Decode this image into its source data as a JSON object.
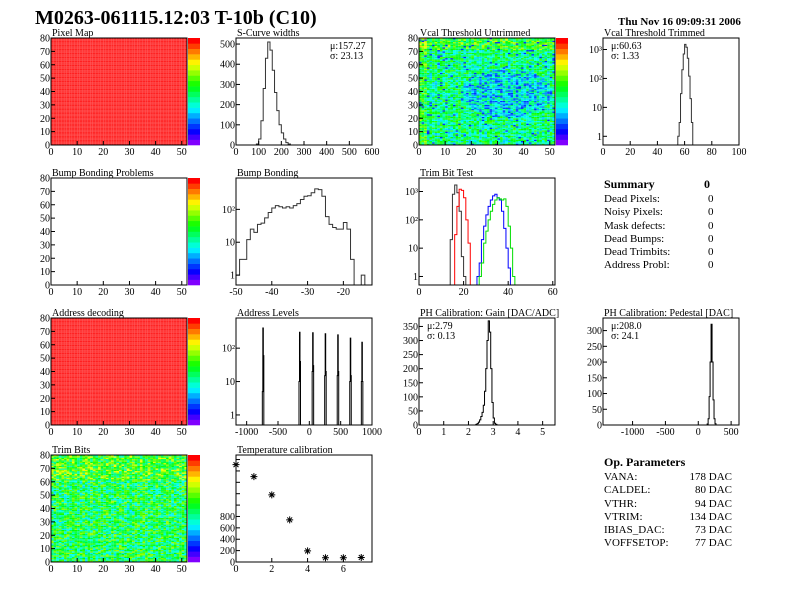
{
  "header": {
    "title": "M0263-061115.12:03 T-10b (C10)",
    "date": "Thu Nov 16 09:09:31 2006"
  },
  "colors": {
    "frame": "#000000",
    "hist_line": "#333333",
    "uniform_map": "#ff2020"
  },
  "summary": {
    "title": "Summary",
    "total": "0",
    "rows": [
      {
        "label": "Dead Pixels:",
        "value": "0"
      },
      {
        "label": "Noisy Pixels:",
        "value": "0"
      },
      {
        "label": "Mask defects:",
        "value": "0"
      },
      {
        "label": "Dead Bumps:",
        "value": "0"
      },
      {
        "label": "Dead Trimbits:",
        "value": "0"
      },
      {
        "label": "Address Probl:",
        "value": "0"
      }
    ]
  },
  "op_parameters": {
    "title": "Op. Parameters",
    "rows": [
      {
        "label": "VANA:",
        "value": "178 DAC"
      },
      {
        "label": "CALDEL:",
        "value": "80 DAC"
      },
      {
        "label": "VTHR:",
        "value": "94 DAC"
      },
      {
        "label": "VTRIM:",
        "value": "134 DAC"
      },
      {
        "label": "IBIAS_DAC:",
        "value": "73 DAC"
      },
      {
        "label": "VOFFSETOP:",
        "value": "77 DAC"
      }
    ]
  },
  "chart_data": [
    {
      "id": "pixel-map",
      "type": "heatmap",
      "title": "Pixel Map",
      "xlim": [
        0,
        52
      ],
      "ylim": [
        0,
        80
      ],
      "xticks": [
        0,
        10,
        20,
        30,
        40,
        50
      ],
      "yticks": [
        0,
        10,
        20,
        30,
        40,
        50,
        60,
        70,
        80
      ],
      "zlim": [
        0,
        10
      ],
      "fill": "uniform-max"
    },
    {
      "id": "s-curve-widths",
      "type": "bar",
      "title": "S-Curve widths",
      "xlim": [
        0,
        600
      ],
      "ylim": [
        0,
        530
      ],
      "bin_width": 10,
      "xticks": [
        0,
        100,
        200,
        300,
        400,
        500,
        600
      ],
      "yticks": [
        0,
        100,
        200,
        300,
        400,
        500
      ],
      "stats": [
        "μ:157.27",
        "σ: 23.13"
      ],
      "stats_pos": "top-right",
      "series": [
        {
          "bins": [
            [
              90,
              5
            ],
            [
              100,
              30
            ],
            [
              110,
              120
            ],
            [
              120,
              280
            ],
            [
              130,
              430
            ],
            [
              140,
              510
            ],
            [
              150,
              470
            ],
            [
              160,
              370
            ],
            [
              170,
              260
            ],
            [
              180,
              170
            ],
            [
              190,
              100
            ],
            [
              200,
              60
            ],
            [
              210,
              30
            ],
            [
              220,
              12
            ],
            [
              230,
              5
            ]
          ],
          "color": "#333333"
        }
      ]
    },
    {
      "id": "vcal-threshold-untrimmed",
      "type": "heatmap",
      "title": "Vcal Threshold Untrimmed",
      "xlim": [
        0,
        52
      ],
      "ylim": [
        0,
        80
      ],
      "xticks": [
        0,
        10,
        20,
        30,
        40,
        50
      ],
      "yticks": [
        0,
        10,
        20,
        30,
        40,
        50,
        60,
        70,
        80
      ],
      "zlim": [
        90,
        125
      ],
      "fill": "noisy"
    },
    {
      "id": "vcal-threshold-trimmed",
      "type": "bar",
      "title": "Vcal Threshold Trimmed",
      "xlim": [
        0,
        100
      ],
      "ylim": [
        0.5,
        2500
      ],
      "log_y": true,
      "bin_width": 1,
      "xticks": [
        0,
        20,
        40,
        60,
        80,
        100
      ],
      "yticks": [
        {
          "v": 1,
          "label": "1"
        },
        {
          "v": 10,
          "label": "10"
        },
        {
          "v": 100,
          "label": "10²"
        },
        {
          "v": 1000,
          "label": "10³"
        }
      ],
      "stats": [
        "μ:60.63",
        "σ: 1.33"
      ],
      "stats_pos": "top-left",
      "series": [
        {
          "bins": [
            [
              55,
              1
            ],
            [
              56,
              3
            ],
            [
              57,
              30
            ],
            [
              58,
              200
            ],
            [
              59,
              700
            ],
            [
              60,
              1500
            ],
            [
              61,
              1200
            ],
            [
              62,
              500
            ],
            [
              63,
              120
            ],
            [
              64,
              20
            ],
            [
              65,
              3
            ]
          ],
          "color": "#333333"
        }
      ]
    },
    {
      "id": "bump-bonding-problems",
      "type": "heatmap",
      "title": "Bump Bonding Problems",
      "xlim": [
        0,
        52
      ],
      "ylim": [
        0,
        80
      ],
      "xticks": [
        0,
        10,
        20,
        30,
        40,
        50
      ],
      "yticks": [
        0,
        10,
        20,
        30,
        40,
        50,
        60,
        70,
        80
      ],
      "zlim": [
        0,
        1
      ],
      "fill": "empty"
    },
    {
      "id": "bump-bonding",
      "type": "bar",
      "title": "Bump Bonding",
      "xlim": [
        -50,
        -12
      ],
      "ylim": [
        0.5,
        900
      ],
      "log_y": true,
      "bin_width": 1,
      "xticks": [
        -50,
        -40,
        -30,
        -20
      ],
      "yticks": [
        {
          "v": 1,
          "label": "1"
        },
        {
          "v": 10,
          "label": "10"
        },
        {
          "v": 100,
          "label": "10²"
        }
      ],
      "series": [
        {
          "bins": [
            [
              -50,
              1
            ],
            [
              -49,
              3
            ],
            [
              -48,
              3
            ],
            [
              -47,
              12
            ],
            [
              -46,
              25
            ],
            [
              -45,
              20
            ],
            [
              -44,
              35
            ],
            [
              -43,
              38
            ],
            [
              -42,
              55
            ],
            [
              -41,
              80
            ],
            [
              -40,
              110
            ],
            [
              -39,
              130
            ],
            [
              -38,
              120
            ],
            [
              -37,
              110
            ],
            [
              -36,
              120
            ],
            [
              -35,
              110
            ],
            [
              -34,
              130
            ],
            [
              -33,
              150
            ],
            [
              -32,
              200
            ],
            [
              -31,
              250
            ],
            [
              -30,
              260
            ],
            [
              -29,
              320
            ],
            [
              -28,
              420
            ],
            [
              -27,
              400
            ],
            [
              -26,
              250
            ],
            [
              -25,
              60
            ],
            [
              -24,
              35
            ],
            [
              -23,
              28
            ],
            [
              -22,
              25
            ],
            [
              -21,
              25
            ],
            [
              -20,
              40
            ],
            [
              -19,
              25
            ],
            [
              -18,
              3
            ],
            [
              -15,
              1
            ]
          ],
          "color": "#333333"
        }
      ]
    },
    {
      "id": "trim-bit-test",
      "type": "bar",
      "title": "Trim Bit Test",
      "xlim": [
        0,
        61
      ],
      "ylim": [
        0.5,
        3000
      ],
      "log_y": true,
      "bin_width": 1,
      "xticks": [
        0,
        20,
        40,
        60
      ],
      "yticks": [
        {
          "v": 1,
          "label": "1"
        },
        {
          "v": 10,
          "label": "10"
        },
        {
          "v": 100,
          "label": "10²"
        },
        {
          "v": 1000,
          "label": "10³"
        }
      ],
      "series": [
        {
          "color": "#333333",
          "bins": [
            [
              14,
              20
            ],
            [
              15,
              800
            ],
            [
              16,
              1700
            ],
            [
              17,
              900
            ],
            [
              18,
              200
            ],
            [
              19,
              5
            ],
            [
              20,
              1
            ]
          ]
        },
        {
          "color": "#ff0000",
          "bins": [
            [
              16,
              30
            ],
            [
              17,
              300
            ],
            [
              18,
              1200
            ],
            [
              19,
              1100
            ],
            [
              20,
              600
            ],
            [
              21,
              100
            ],
            [
              22,
              15
            ]
          ]
        },
        {
          "color": "#0000ff",
          "bins": [
            [
              26,
              1
            ],
            [
              27,
              3
            ],
            [
              28,
              20
            ],
            [
              29,
              60
            ],
            [
              30,
              150
            ],
            [
              31,
              300
            ],
            [
              32,
              500
            ],
            [
              33,
              700
            ],
            [
              34,
              800
            ],
            [
              35,
              600
            ],
            [
              36,
              500
            ],
            [
              37,
              200
            ],
            [
              38,
              50
            ],
            [
              39,
              10
            ],
            [
              40,
              2
            ]
          ]
        },
        {
          "color": "#00dd00",
          "bins": [
            [
              27,
              1
            ],
            [
              28,
              3
            ],
            [
              29,
              15
            ],
            [
              30,
              40
            ],
            [
              31,
              100
            ],
            [
              32,
              200
            ],
            [
              33,
              350
            ],
            [
              34,
              500
            ],
            [
              35,
              600
            ],
            [
              36,
              550
            ],
            [
              37,
              500
            ],
            [
              38,
              550
            ],
            [
              39,
              300
            ],
            [
              40,
              60
            ],
            [
              41,
              10
            ],
            [
              42,
              1
            ]
          ]
        }
      ]
    },
    {
      "id": "address-decoding",
      "type": "heatmap",
      "title": "Address decoding",
      "xlim": [
        0,
        52
      ],
      "ylim": [
        0,
        80
      ],
      "xticks": [
        0,
        10,
        20,
        30,
        40,
        50
      ],
      "yticks": [
        0,
        10,
        20,
        30,
        40,
        50,
        60,
        70,
        80
      ],
      "zlim": [
        0,
        1
      ],
      "fill": "uniform-max"
    },
    {
      "id": "address-levels",
      "type": "bar",
      "title": "Address Levels",
      "xlim": [
        -1170,
        1000
      ],
      "ylim": [
        0.5,
        800
      ],
      "log_y": true,
      "bin_width": 8,
      "xticks": [
        -1000,
        -500,
        0,
        500,
        1000
      ],
      "yticks": [
        {
          "v": 1,
          "label": "1"
        },
        {
          "v": 10,
          "label": "10"
        },
        {
          "v": 100,
          "label": "10²"
        }
      ],
      "series": [
        {
          "color": "#000000",
          "bins": [
            [
              -750,
              5
            ],
            [
              -742,
              400
            ],
            [
              -734,
              60
            ],
            [
              -165,
              10
            ],
            [
              -157,
              300
            ],
            [
              -149,
              40
            ],
            [
              45,
              20
            ],
            [
              53,
              290
            ],
            [
              61,
              30
            ],
            [
              245,
              15
            ],
            [
              253,
              270
            ],
            [
              261,
              20
            ],
            [
              445,
              15
            ],
            [
              453,
              250
            ],
            [
              461,
              20
            ],
            [
              645,
              10
            ],
            [
              653,
              200
            ],
            [
              661,
              15
            ],
            [
              830,
              10
            ],
            [
              838,
              150
            ],
            [
              846,
              10
            ]
          ]
        }
      ]
    },
    {
      "id": "ph-calibration-gain",
      "type": "bar",
      "title": "PH Calibration: Gain [DAC/ADC]",
      "xlim": [
        0,
        5.5
      ],
      "ylim": [
        0,
        380
      ],
      "bin_width": 0.05,
      "xticks": [
        0,
        1,
        2,
        3,
        4,
        5
      ],
      "yticks": [
        0,
        50,
        100,
        150,
        200,
        250,
        300,
        350
      ],
      "stats": [
        "μ:2.79",
        "σ: 0.13"
      ],
      "stats_pos": "top-left",
      "series": [
        {
          "color": "#000000",
          "bins": [
            [
              2.3,
              2
            ],
            [
              2.35,
              5
            ],
            [
              2.4,
              10
            ],
            [
              2.45,
              18
            ],
            [
              2.5,
              30
            ],
            [
              2.55,
              45
            ],
            [
              2.6,
              70
            ],
            [
              2.65,
              120
            ],
            [
              2.7,
              200
            ],
            [
              2.75,
              300
            ],
            [
              2.8,
              370
            ],
            [
              2.85,
              330
            ],
            [
              2.9,
              200
            ],
            [
              2.95,
              80
            ],
            [
              3.0,
              25
            ],
            [
              3.05,
              6
            ],
            [
              3.1,
              2
            ]
          ]
        }
      ]
    },
    {
      "id": "ph-calibration-pedestal",
      "type": "bar",
      "title": "PH Calibration: Pedestal [DAC]",
      "xlim": [
        -1450,
        620
      ],
      "ylim": [
        0,
        340
      ],
      "bin_width": 15,
      "xticks": [
        -1000,
        -500,
        0,
        500
      ],
      "yticks": [
        0,
        50,
        100,
        150,
        200,
        250,
        300
      ],
      "stats": [
        "μ:208.0",
        "σ: 24.1"
      ],
      "stats_pos": "top-left",
      "series": [
        {
          "color": "#000000",
          "bins": [
            [
              135,
              3
            ],
            [
              150,
              20
            ],
            [
              165,
              90
            ],
            [
              180,
              200
            ],
            [
              195,
              320
            ],
            [
              210,
              200
            ],
            [
              225,
              80
            ],
            [
              240,
              20
            ],
            [
              255,
              4
            ]
          ]
        }
      ]
    },
    {
      "id": "trim-bits",
      "type": "heatmap",
      "title": "Trim Bits",
      "xlim": [
        0,
        52
      ],
      "ylim": [
        0,
        80
      ],
      "xticks": [
        0,
        10,
        20,
        30,
        40,
        50
      ],
      "yticks": [
        0,
        10,
        20,
        30,
        40,
        50,
        60,
        70,
        80
      ],
      "zlim": [
        0,
        15
      ],
      "fill": "noisy"
    },
    {
      "id": "temperature-calibration",
      "type": "scatter",
      "title": "Temperature calibration",
      "xlim": [
        0,
        7.6
      ],
      "ylim": [
        0,
        1880
      ],
      "xticks": [
        0,
        2,
        4,
        6
      ],
      "yticks": [
        0,
        200,
        400,
        600,
        800
      ],
      "yminor": [
        1000,
        1200,
        1400,
        1600,
        1800
      ],
      "points": [
        [
          0,
          1710
        ],
        [
          1,
          1500
        ],
        [
          2,
          1180
        ],
        [
          3,
          740
        ],
        [
          4,
          195
        ],
        [
          5,
          75
        ],
        [
          6,
          75
        ],
        [
          7,
          80
        ]
      ]
    }
  ]
}
